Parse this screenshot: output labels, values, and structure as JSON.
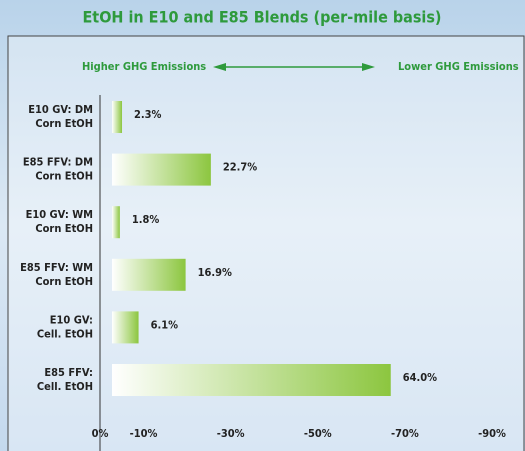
{
  "chart_data": {
    "type": "hbar",
    "title": "EtOH in E10 and E85 Blends (per-mile basis)",
    "annotations": [
      "Higher GHG Emissions",
      "Lower GHG Emissions"
    ],
    "categories": [
      [
        "E10 GV: DM",
        "Corn EtOH"
      ],
      [
        "E85 FFV: DM",
        "Corn EtOH"
      ],
      [
        "E10 GV: WM",
        "Corn EtOH"
      ],
      [
        "E85 FFV: WM",
        "Corn EtOH"
      ],
      [
        "E10 GV:",
        "Cell. EtOH"
      ],
      [
        "E85 FFV:",
        "Cell. EtOH"
      ]
    ],
    "values": [
      2.3,
      22.7,
      1.8,
      16.9,
      6.1,
      64.0
    ],
    "value_labels": [
      "2.3%",
      "22.7%",
      "1.8%",
      "16.9%",
      "6.1%",
      "64.0%"
    ],
    "color": "#8cc63f",
    "xlim": [
      0,
      90
    ],
    "xticks": [
      {
        "value": 0,
        "label": "0%"
      },
      {
        "value": 10,
        "label": "-10%"
      },
      {
        "value": 30,
        "label": "-30%"
      },
      {
        "value": 50,
        "label": "-50%"
      },
      {
        "value": 70,
        "label": "-70%"
      },
      {
        "value": 90,
        "label": "-90%"
      }
    ]
  }
}
